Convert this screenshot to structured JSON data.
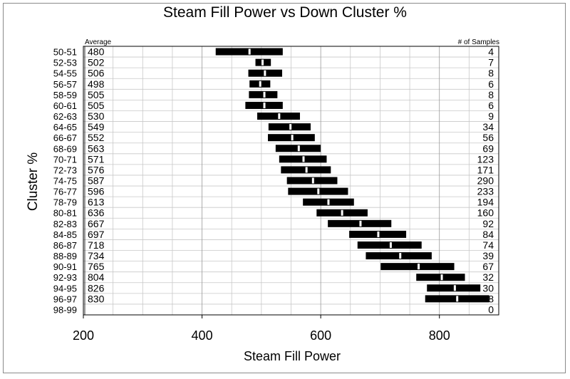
{
  "chart_data": {
    "type": "bar",
    "subtype": "horizontal range bars with average marker",
    "title": "Steam Fill Power vs Down Cluster %",
    "xlabel": "Steam Fill Power",
    "ylabel": "Cluster %",
    "xlim": [
      200,
      900
    ],
    "x_ticks": [
      "200",
      "400",
      "600",
      "800"
    ],
    "grid": "vertical",
    "average_header": "Average",
    "samples_header": "# of Samples",
    "categories": [
      "50-51",
      "52-53",
      "54-55",
      "56-57",
      "58-59",
      "60-61",
      "62-63",
      "64-65",
      "66-67",
      "68-69",
      "70-71",
      "72-73",
      "74-75",
      "76-77",
      "78-79",
      "80-81",
      "82-83",
      "84-85",
      "86-87",
      "88-89",
      "90-91",
      "92-93",
      "94-95",
      "96-97",
      "98-99"
    ],
    "average": [
      "480",
      "502",
      "506",
      "498",
      "505",
      "505",
      "530",
      "549",
      "552",
      "563",
      "571",
      "576",
      "587",
      "596",
      "613",
      "636",
      "667",
      "697",
      "718",
      "734",
      "765",
      "804",
      "826",
      "830",
      ""
    ],
    "samples": [
      "4",
      "7",
      "8",
      "6",
      "8",
      "6",
      "9",
      "34",
      "56",
      "69",
      "123",
      "171",
      "290",
      "233",
      "194",
      "160",
      "92",
      "84",
      "74",
      "39",
      "67",
      "32",
      "30",
      "8",
      "0"
    ],
    "series": [
      {
        "name": "low",
        "values": [
          423,
          490,
          478,
          480,
          479,
          473,
          493,
          512,
          511,
          524,
          530,
          533,
          543,
          545,
          570,
          593,
          612,
          648,
          662,
          676,
          701,
          761,
          779,
          776,
          null
        ]
      },
      {
        "name": "high",
        "values": [
          536,
          516,
          535,
          515,
          527,
          536,
          565,
          583,
          590,
          600,
          610,
          617,
          628,
          646,
          656,
          679,
          719,
          744,
          770,
          787,
          825,
          843,
          869,
          884,
          null
        ]
      },
      {
        "name": "average",
        "values": [
          480,
          502,
          506,
          498,
          505,
          505,
          530,
          549,
          552,
          563,
          571,
          576,
          587,
          596,
          613,
          636,
          667,
          697,
          718,
          734,
          765,
          804,
          826,
          830,
          null
        ]
      }
    ]
  }
}
